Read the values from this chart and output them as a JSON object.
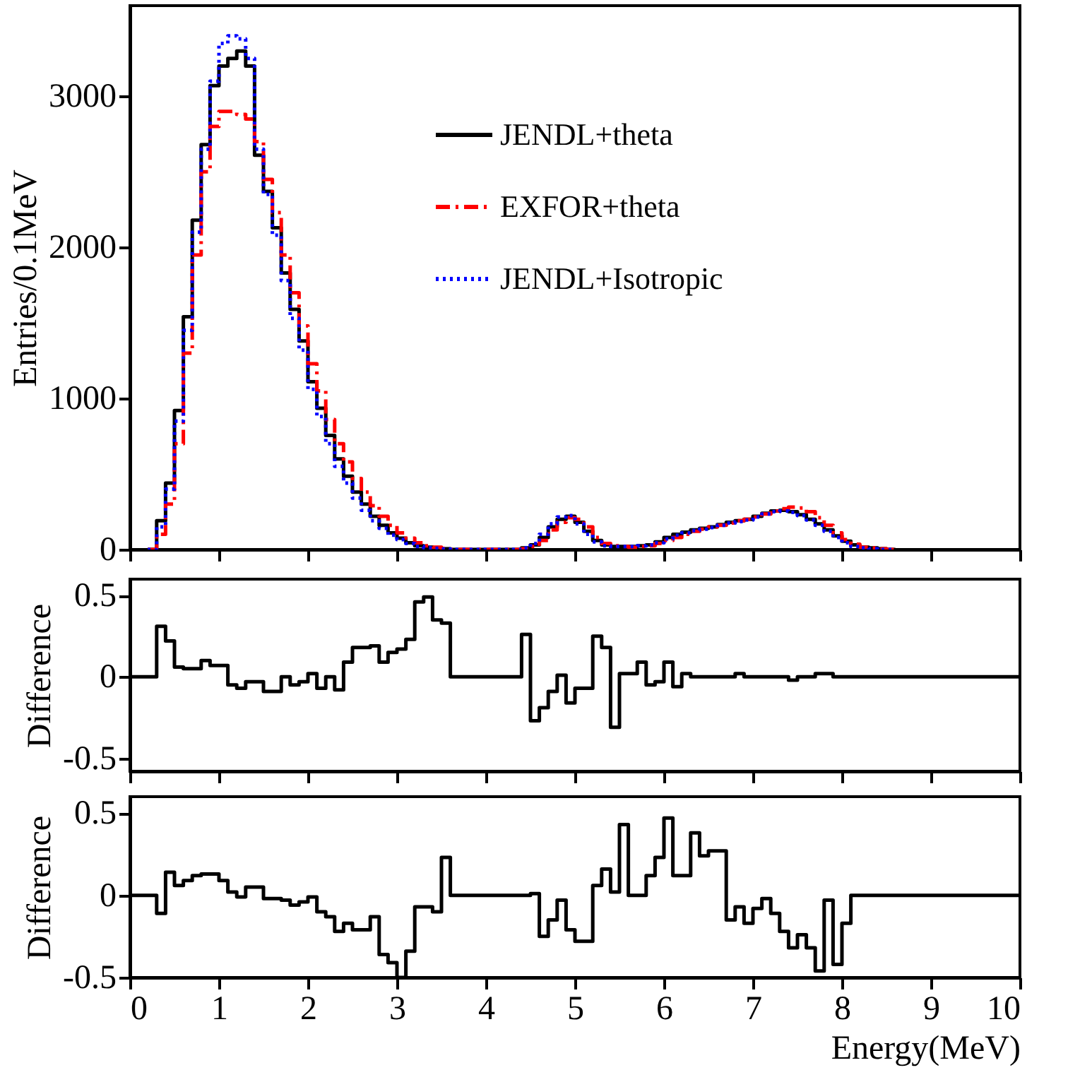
{
  "chart_data": [
    {
      "type": "step",
      "ylabel": "Entries/0.1MeV",
      "xlim": [
        0,
        10
      ],
      "ylim": [
        0,
        3600
      ],
      "yticks": [
        0,
        1000,
        2000,
        3000
      ],
      "xticks": [
        0,
        1,
        2,
        3,
        4,
        5,
        6,
        7,
        8,
        9,
        10
      ],
      "tick_labels": "y",
      "grid": false,
      "legend": "top right",
      "x": [
        0.2,
        0.3,
        0.4,
        0.5,
        0.6,
        0.7,
        0.8,
        0.9,
        1.0,
        1.1,
        1.2,
        1.3,
        1.4,
        1.5,
        1.6,
        1.7,
        1.8,
        1.9,
        2.0,
        2.1,
        2.2,
        2.3,
        2.4,
        2.5,
        2.6,
        2.7,
        2.8,
        2.9,
        3.0,
        3.1,
        3.2,
        3.3,
        3.4,
        3.5,
        3.6,
        3.7,
        3.8,
        3.9,
        4.0,
        4.1,
        4.2,
        4.3,
        4.4,
        4.5,
        4.6,
        4.7,
        4.8,
        4.9,
        5.0,
        5.1,
        5.2,
        5.3,
        5.4,
        5.5,
        5.6,
        5.7,
        5.8,
        5.9,
        6.0,
        6.1,
        6.2,
        6.3,
        6.4,
        6.5,
        6.6,
        6.7,
        6.8,
        6.9,
        7.0,
        7.1,
        7.2,
        7.3,
        7.4,
        7.5,
        7.6,
        7.7,
        7.8,
        7.9,
        8.0,
        8.1,
        8.2,
        8.3,
        8.4,
        8.5,
        8.6
      ],
      "series": [
        {
          "name": "JENDL+theta",
          "color": "#000000",
          "line_style": "solid",
          "values": [
            0,
            190,
            440,
            920,
            1540,
            2180,
            2680,
            3070,
            3200,
            3250,
            3300,
            3200,
            2610,
            2370,
            2130,
            1830,
            1590,
            1380,
            1110,
            935,
            755,
            600,
            485,
            380,
            300,
            220,
            160,
            110,
            75,
            45,
            25,
            15,
            10,
            5,
            0,
            0,
            0,
            0,
            0,
            0,
            0,
            0,
            10,
            30,
            80,
            150,
            200,
            220,
            180,
            120,
            60,
            30,
            20,
            20,
            20,
            25,
            30,
            50,
            80,
            100,
            115,
            130,
            140,
            150,
            165,
            180,
            190,
            200,
            220,
            240,
            255,
            260,
            250,
            230,
            200,
            170,
            130,
            90,
            55,
            30,
            15,
            10,
            5,
            0,
            0
          ]
        },
        {
          "name": "EXFOR+theta",
          "color": "#ff0000",
          "line_style": "dashed",
          "values": [
            0,
            100,
            300,
            700,
            1300,
            1950,
            2500,
            2800,
            2900,
            2900,
            2880,
            2850,
            2700,
            2450,
            2230,
            1950,
            1700,
            1480,
            1230,
            1050,
            860,
            700,
            580,
            470,
            380,
            290,
            220,
            160,
            110,
            75,
            45,
            25,
            15,
            5,
            0,
            0,
            0,
            0,
            0,
            0,
            0,
            0,
            5,
            20,
            60,
            130,
            180,
            210,
            200,
            150,
            80,
            40,
            25,
            20,
            15,
            20,
            25,
            40,
            60,
            80,
            100,
            120,
            135,
            150,
            160,
            175,
            190,
            200,
            215,
            235,
            255,
            270,
            280,
            275,
            250,
            210,
            160,
            110,
            65,
            35,
            15,
            10,
            5,
            0,
            0
          ]
        },
        {
          "name": "JENDL+Isotropic",
          "color": "#0000ff",
          "line_style": "dotted",
          "values": [
            0,
            150,
            400,
            850,
            1450,
            2100,
            2650,
            3100,
            3350,
            3400,
            3380,
            3250,
            2650,
            2350,
            2080,
            1780,
            1530,
            1320,
            1060,
            880,
            700,
            550,
            440,
            340,
            260,
            190,
            140,
            95,
            65,
            40,
            20,
            12,
            8,
            4,
            0,
            0,
            0,
            0,
            0,
            0,
            0,
            0,
            10,
            40,
            100,
            170,
            215,
            225,
            170,
            100,
            50,
            25,
            20,
            20,
            20,
            25,
            30,
            45,
            70,
            95,
            110,
            125,
            135,
            145,
            160,
            175,
            185,
            195,
            215,
            235,
            250,
            255,
            245,
            225,
            195,
            160,
            120,
            80,
            45,
            20,
            10,
            5,
            0,
            0,
            0
          ]
        }
      ]
    },
    {
      "type": "step",
      "ylabel": "Difference",
      "xlim": [
        0,
        10
      ],
      "ylim": [
        -0.58,
        0.6
      ],
      "yticks": [
        -0.5,
        0,
        0.5
      ],
      "xticks": [
        0,
        1,
        2,
        3,
        4,
        5,
        6,
        7,
        8,
        9,
        10
      ],
      "tick_labels": "y",
      "grid": false,
      "series": [
        {
          "color": "#000000",
          "line_style": "solid",
          "x": [
            0,
            0.3,
            0.4,
            0.5,
            0.6,
            0.8,
            0.9,
            1.1,
            1.2,
            1.3,
            1.5,
            1.7,
            1.8,
            1.9,
            2.0,
            2.1,
            2.2,
            2.3,
            2.4,
            2.5,
            2.7,
            2.8,
            2.9,
            3.0,
            3.1,
            3.2,
            3.3,
            3.4,
            3.5,
            3.6,
            4.4,
            4.5,
            4.6,
            4.7,
            4.8,
            4.9,
            5.0,
            5.2,
            5.3,
            5.4,
            5.5,
            5.7,
            5.8,
            5.9,
            6.0,
            6.1,
            6.2,
            6.3,
            6.8,
            6.9,
            7.4,
            7.5,
            7.7,
            7.9,
            10
          ],
          "values": [
            0,
            0.31,
            0.22,
            0.06,
            0.05,
            0.1,
            0.07,
            -0.05,
            -0.07,
            -0.03,
            -0.09,
            0,
            -0.05,
            -0.03,
            0.02,
            -0.07,
            0,
            -0.08,
            0.09,
            0.18,
            0.19,
            0.09,
            0.15,
            0.17,
            0.23,
            0.46,
            0.49,
            0.35,
            0.33,
            0,
            0.26,
            -0.27,
            -0.19,
            -0.09,
            0.01,
            -0.16,
            -0.07,
            0.25,
            0.18,
            -0.31,
            0.02,
            0.09,
            -0.05,
            -0.03,
            0.09,
            -0.06,
            0.02,
            0,
            0.02,
            0,
            -0.02,
            0,
            0.02,
            0,
            0
          ]
        }
      ]
    },
    {
      "type": "step",
      "ylabel": "Difference",
      "xlabel": "Energy(MeV)",
      "xlim": [
        0,
        10
      ],
      "ylim": [
        -0.5,
        0.6
      ],
      "yticks": [
        -0.5,
        0,
        0.5
      ],
      "xticks": [
        0,
        1,
        2,
        3,
        4,
        5,
        6,
        7,
        8,
        9,
        10
      ],
      "grid": false,
      "series": [
        {
          "color": "#000000",
          "line_style": "solid",
          "x": [
            0,
            0.3,
            0.4,
            0.5,
            0.6,
            0.7,
            0.8,
            1.0,
            1.1,
            1.2,
            1.3,
            1.5,
            1.7,
            1.8,
            1.9,
            2.0,
            2.1,
            2.2,
            2.3,
            2.4,
            2.5,
            2.7,
            2.8,
            2.9,
            3.0,
            3.1,
            3.2,
            3.4,
            3.5,
            3.6,
            4.5,
            4.6,
            4.7,
            4.8,
            4.9,
            5.0,
            5.2,
            5.3,
            5.4,
            5.5,
            5.6,
            5.8,
            5.9,
            6.0,
            6.1,
            6.3,
            6.4,
            6.5,
            6.7,
            6.8,
            6.9,
            7.0,
            7.1,
            7.2,
            7.3,
            7.4,
            7.5,
            7.6,
            7.7,
            7.8,
            7.9,
            8.0,
            8.1,
            10
          ],
          "values": [
            0,
            -0.11,
            0.14,
            0.06,
            0.09,
            0.12,
            0.13,
            0.09,
            0.02,
            -0.01,
            0.05,
            -0.02,
            -0.03,
            -0.06,
            -0.04,
            -0.01,
            -0.1,
            -0.13,
            -0.22,
            -0.17,
            -0.21,
            -0.13,
            -0.36,
            -0.41,
            -0.5,
            -0.34,
            -0.07,
            -0.1,
            0.23,
            0,
            0.01,
            -0.25,
            -0.15,
            -0.03,
            -0.21,
            -0.28,
            0.06,
            0.16,
            0.02,
            0.43,
            0,
            0.12,
            0.23,
            0.47,
            0.12,
            0.38,
            0.24,
            0.27,
            -0.15,
            -0.07,
            -0.17,
            -0.08,
            -0.02,
            -0.11,
            -0.22,
            -0.32,
            -0.24,
            -0.32,
            -0.46,
            -0.03,
            -0.42,
            -0.17,
            0,
            0
          ]
        }
      ]
    }
  ]
}
